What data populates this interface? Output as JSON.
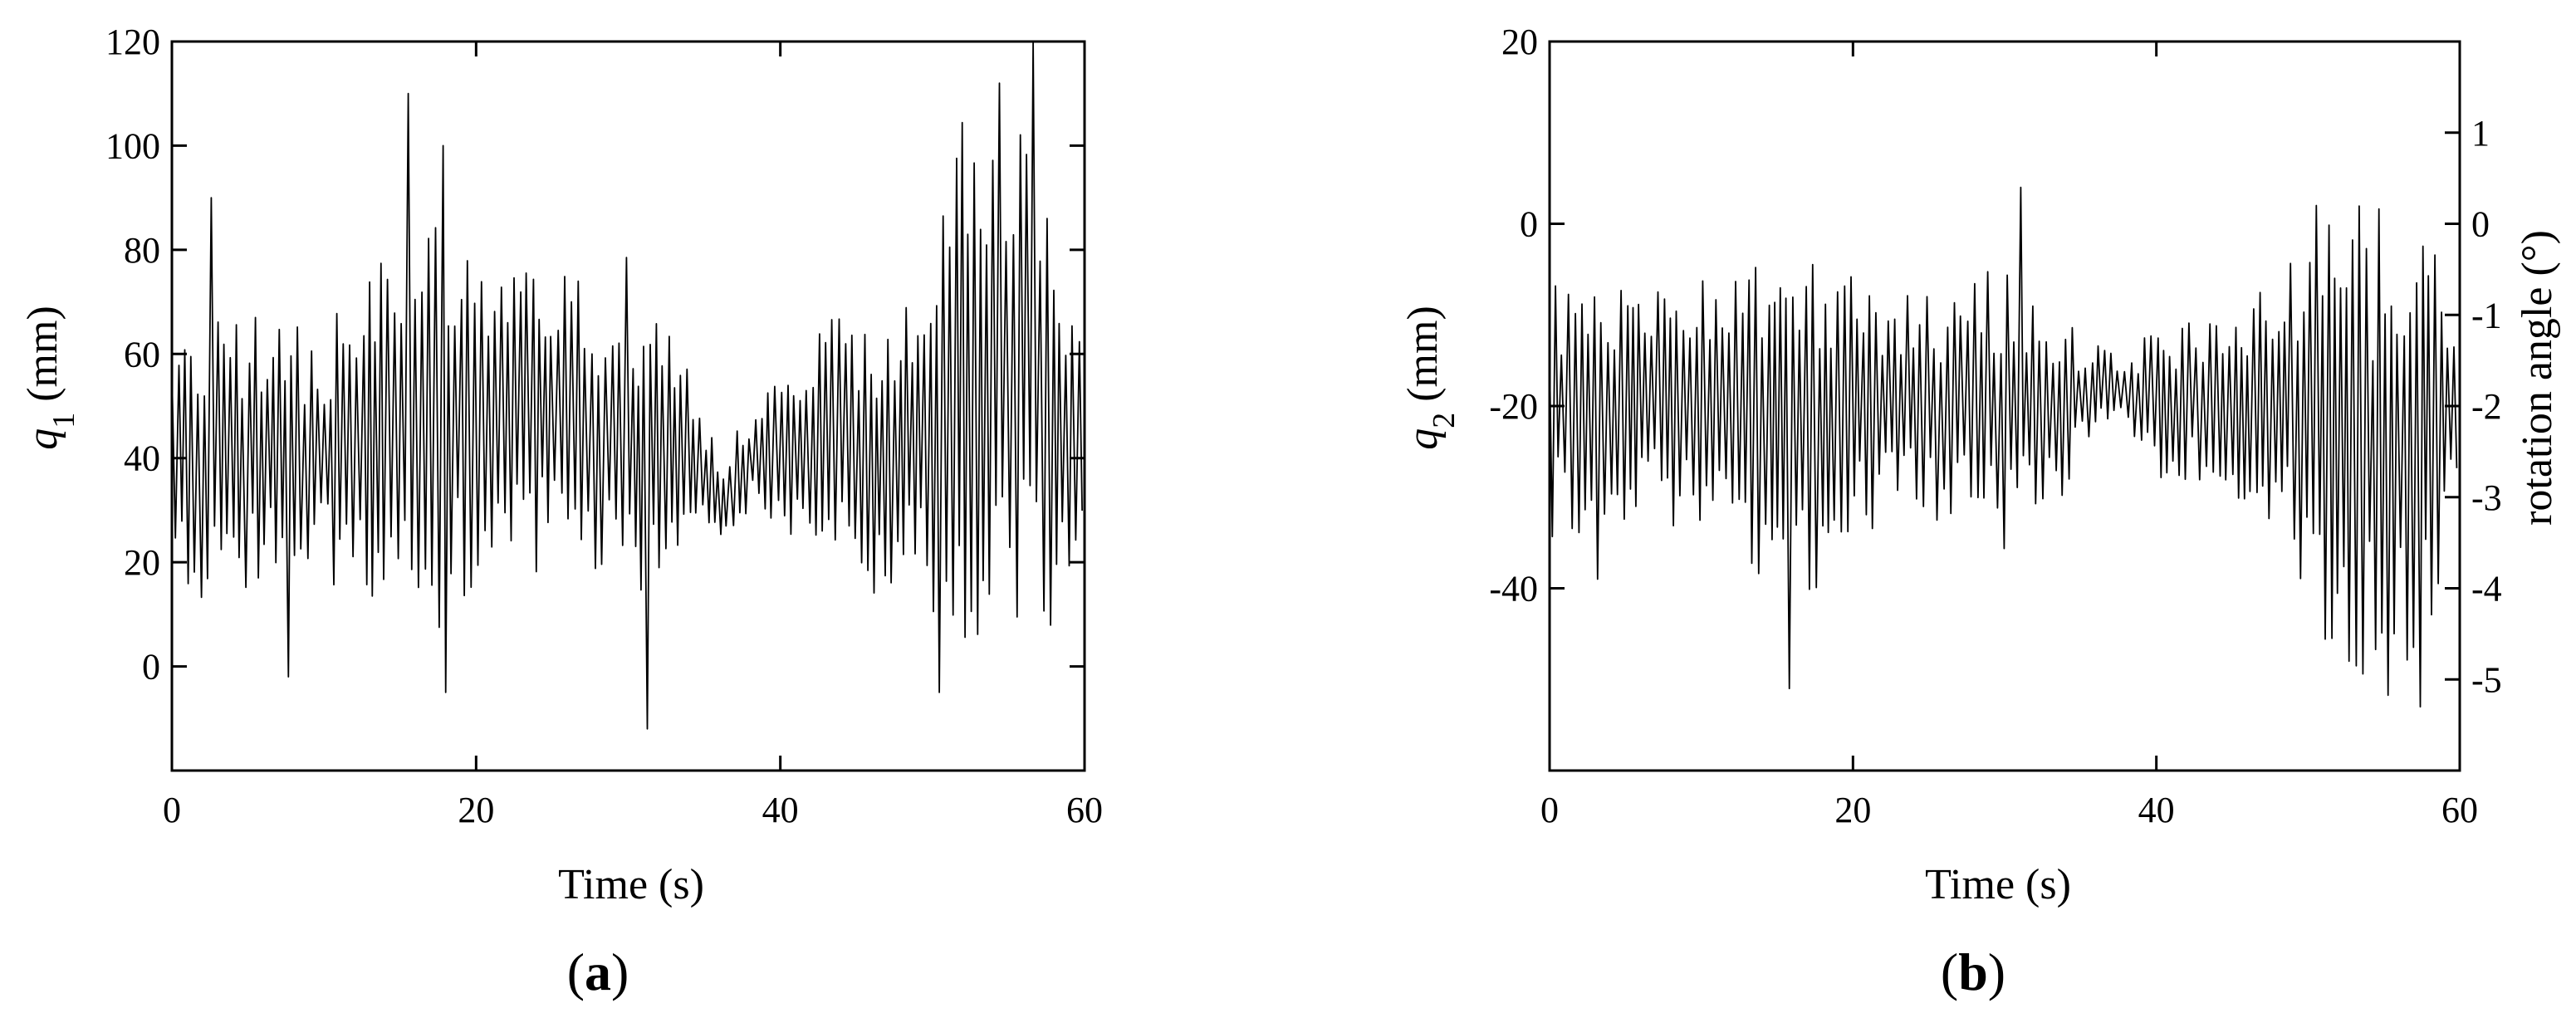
{
  "chart_data": [
    {
      "type": "line",
      "panel_label": "a",
      "title": "",
      "xlabel": "Time (s)",
      "ylabel_symbol": "q",
      "ylabel_subscript": "1",
      "ylabel_unit": " (mm)",
      "xlim": [
        0,
        60
      ],
      "ylim": [
        -20,
        120
      ],
      "xticks": [
        0,
        20,
        40,
        60
      ],
      "yticks": [
        0,
        20,
        40,
        60,
        80,
        100,
        120
      ],
      "grid": false,
      "legend": "none",
      "line_color": "#000000",
      "series": [
        {
          "envelope": {
            "t": [
              0,
              3,
              6,
              9,
              12,
              15,
              18,
              21,
              24,
              27,
              30,
              32,
              34,
              36,
              38,
              40,
              43,
              46,
              48,
              50,
              52,
              54,
              56,
              58,
              60
            ],
            "mean": [
              42,
              40,
              42,
              40,
              42,
              45,
              48,
              46,
              48,
              45,
              44,
              40,
              42,
              32,
              40,
              40,
              45,
              38,
              42,
              50,
              55,
              55,
              55,
              45,
              42
            ],
            "amplitude": [
              30,
              28,
              25,
              25,
              28,
              40,
              42,
              30,
              32,
              30,
              35,
              25,
              20,
              8,
              10,
              15,
              22,
              28,
              25,
              40,
              50,
              48,
              50,
              40,
              20
            ]
          },
          "peaks": [
            {
              "t": 2.4,
              "value": 90
            },
            {
              "t": 7.7,
              "value": -2
            },
            {
              "t": 15.5,
              "value": 110
            },
            {
              "t": 17.9,
              "value": 100
            },
            {
              "t": 17.9,
              "value": -5
            },
            {
              "t": 31.1,
              "value": -12
            },
            {
              "t": 50.3,
              "value": -5
            },
            {
              "t": 54.2,
              "value": 112
            },
            {
              "t": 56.6,
              "value": 120
            }
          ]
        }
      ]
    },
    {
      "type": "line",
      "panel_label": "b",
      "title": "",
      "xlabel": "Time (s)",
      "ylabel_symbol": "q",
      "ylabel_subscript": "2",
      "ylabel_unit": " (mm)",
      "y2label": "rotation angle (°)",
      "xlim": [
        0,
        60
      ],
      "ylim": [
        -60,
        20
      ],
      "xticks": [
        0,
        20,
        40,
        60
      ],
      "yticks": [
        -40,
        -20,
        0,
        20
      ],
      "y2lim": [
        -6,
        2
      ],
      "y2ticks": [
        -5,
        -4,
        -3,
        -2,
        -1,
        0,
        1
      ],
      "grid": false,
      "legend": "none",
      "line_color": "#000000",
      "series": [
        {
          "envelope": {
            "t": [
              0,
              3,
              6,
              9,
              12,
              15,
              18,
              21,
              24,
              27,
              30,
              32,
              34,
              36,
              38,
              40,
              43,
              46,
              48,
              50,
              52,
              54,
              56,
              58,
              60
            ],
            "mean": [
              -20,
              -20,
              -20,
              -20,
              -20,
              -22,
              -22,
              -20,
              -20,
              -20,
              -20,
              -20,
              -20,
              -18,
              -18,
              -20,
              -20,
              -22,
              -18,
              -22,
              -25,
              -25,
              -25,
              -22,
              -20
            ],
            "amplitude": [
              15,
              14,
              12,
              14,
              15,
              20,
              18,
              14,
              12,
              14,
              16,
              12,
              10,
              5,
              5,
              8,
              10,
              12,
              14,
              20,
              26,
              28,
              30,
              22,
              10
            ]
          },
          "peaks": [
            {
              "t": 3.2,
              "value": -39
            },
            {
              "t": 15.8,
              "value": -51
            },
            {
              "t": 31.1,
              "value": 4
            },
            {
              "t": 50.5,
              "value": 2
            },
            {
              "t": 52.7,
              "value": -48
            },
            {
              "t": 57.2,
              "value": -53
            }
          ]
        }
      ]
    }
  ]
}
